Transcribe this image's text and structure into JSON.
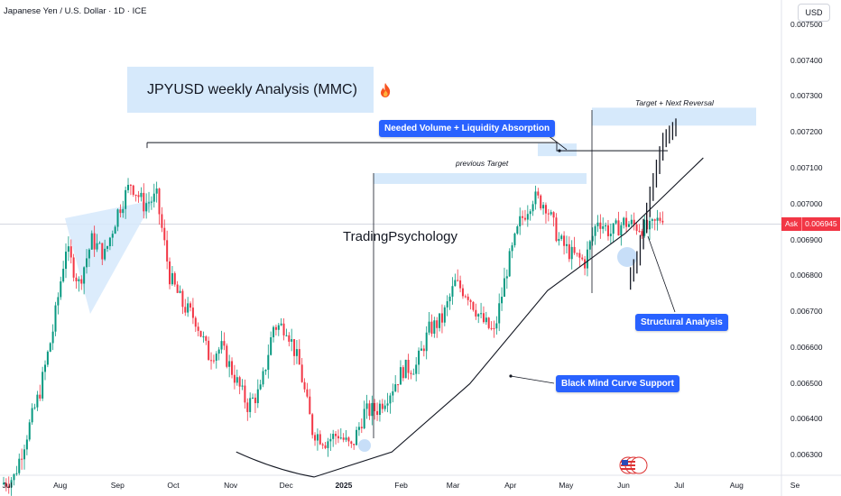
{
  "header": {
    "symbol_title": "Japanese Yen / U.S. Dollar · 1D · ICE",
    "currency_button": "USD"
  },
  "price_axis": {
    "labels": [
      "0.007500",
      "0.007400",
      "0.007300",
      "0.007200",
      "0.007100",
      "0.007000",
      "0.006900",
      "0.006800",
      "0.006700",
      "0.006600",
      "0.006500",
      "0.006400",
      "0.006300"
    ],
    "ask_label": "Ask",
    "ask_value": "0.006945",
    "up_color": "#089981",
    "down_color": "#f23645"
  },
  "time_axis": {
    "labels": [
      {
        "text": "Jul",
        "bold": false
      },
      {
        "text": "Aug",
        "bold": false
      },
      {
        "text": "Sep",
        "bold": false
      },
      {
        "text": "Oct",
        "bold": false
      },
      {
        "text": "Nov",
        "bold": false
      },
      {
        "text": "Dec",
        "bold": false
      },
      {
        "text": "2025",
        "bold": true
      },
      {
        "text": "Feb",
        "bold": false
      },
      {
        "text": "Mar",
        "bold": false
      },
      {
        "text": "Apr",
        "bold": false
      },
      {
        "text": "May",
        "bold": false
      },
      {
        "text": "Jun",
        "bold": false
      },
      {
        "text": "Jul",
        "bold": false
      },
      {
        "text": "Aug",
        "bold": false
      },
      {
        "text": "Se",
        "bold": false
      }
    ]
  },
  "annotations": {
    "title": "JPYUSD weekly Analysis (MMC)",
    "volume_callout": "Needed Volume + Liquidity Absorption",
    "previous_target": "previous Target",
    "target_reversal": "Target + Next Reversal",
    "watermark": "TradingPsychology",
    "structural": "Structural Analysis",
    "curve_support": "Black Mind Curve Support",
    "accent_color": "#2962ff",
    "zone_color": "#d6e9fb"
  },
  "chart_data": {
    "type": "candlestick",
    "title": "Japanese Yen / U.S. Dollar · 1D · ICE",
    "ylim": [
      0.00625,
      0.00752
    ],
    "ylabel": "USD",
    "ask": 0.006945,
    "closes": [
      {
        "date": "2024-07-01",
        "value": 0.00622
      },
      {
        "date": "2024-07-08",
        "value": 0.00624
      },
      {
        "date": "2024-07-15",
        "value": 0.00636
      },
      {
        "date": "2024-07-22",
        "value": 0.00648
      },
      {
        "date": "2024-07-29",
        "value": 0.00665
      },
      {
        "date": "2024-08-05",
        "value": 0.00688
      },
      {
        "date": "2024-08-12",
        "value": 0.00678
      },
      {
        "date": "2024-08-19",
        "value": 0.0069
      },
      {
        "date": "2024-08-26",
        "value": 0.00686
      },
      {
        "date": "2024-09-02",
        "value": 0.00698
      },
      {
        "date": "2024-09-09",
        "value": 0.00706
      },
      {
        "date": "2024-09-16",
        "value": 0.007
      },
      {
        "date": "2024-09-23",
        "value": 0.00702
      },
      {
        "date": "2024-09-30",
        "value": 0.0068
      },
      {
        "date": "2024-10-07",
        "value": 0.00672
      },
      {
        "date": "2024-10-14",
        "value": 0.00668
      },
      {
        "date": "2024-10-21",
        "value": 0.00658
      },
      {
        "date": "2024-10-28",
        "value": 0.0066
      },
      {
        "date": "2024-11-04",
        "value": 0.00652
      },
      {
        "date": "2024-11-11",
        "value": 0.00644
      },
      {
        "date": "2024-11-18",
        "value": 0.00648
      },
      {
        "date": "2024-11-25",
        "value": 0.00666
      },
      {
        "date": "2024-12-02",
        "value": 0.00666
      },
      {
        "date": "2024-12-09",
        "value": 0.00655
      },
      {
        "date": "2024-12-16",
        "value": 0.00637
      },
      {
        "date": "2024-12-23",
        "value": 0.00634
      },
      {
        "date": "2024-12-30",
        "value": 0.00636
      },
      {
        "date": "2025-01-06",
        "value": 0.00632
      },
      {
        "date": "2025-01-13",
        "value": 0.00642
      },
      {
        "date": "2025-01-20",
        "value": 0.00643
      },
      {
        "date": "2025-01-27",
        "value": 0.00648
      },
      {
        "date": "2025-02-03",
        "value": 0.00654
      },
      {
        "date": "2025-02-10",
        "value": 0.00655
      },
      {
        "date": "2025-02-17",
        "value": 0.00665
      },
      {
        "date": "2025-02-24",
        "value": 0.00668
      },
      {
        "date": "2025-03-03",
        "value": 0.00678
      },
      {
        "date": "2025-03-10",
        "value": 0.00675
      },
      {
        "date": "2025-03-17",
        "value": 0.00668
      },
      {
        "date": "2025-03-24",
        "value": 0.00664
      },
      {
        "date": "2025-03-31",
        "value": 0.00682
      },
      {
        "date": "2025-04-07",
        "value": 0.00695
      },
      {
        "date": "2025-04-14",
        "value": 0.00702
      },
      {
        "date": "2025-04-21",
        "value": 0.007
      },
      {
        "date": "2025-04-28",
        "value": 0.0069
      },
      {
        "date": "2025-05-05",
        "value": 0.00686
      },
      {
        "date": "2025-05-12",
        "value": 0.00684
      },
      {
        "date": "2025-05-19",
        "value": 0.00696
      },
      {
        "date": "2025-05-26",
        "value": 0.00692
      },
      {
        "date": "2025-06-02",
        "value": 0.00695
      },
      {
        "date": "2025-06-09",
        "value": 0.00694
      },
      {
        "date": "2025-06-16",
        "value": 0.00693
      },
      {
        "date": "2025-06-23",
        "value": 0.00697
      }
    ],
    "projection": [
      {
        "date": "2025-06-02",
        "value": 0.00676
      },
      {
        "date": "2025-06-09",
        "value": 0.00685
      },
      {
        "date": "2025-06-16",
        "value": 0.00703
      },
      {
        "date": "2025-06-23",
        "value": 0.00718
      },
      {
        "date": "2025-06-30",
        "value": 0.00722
      }
    ],
    "levels": {
      "needed_volume_liquidity": 0.00715,
      "previous_target_zone": [
        0.00705,
        0.00708
      ],
      "target_next_reversal_zone": [
        0.00722,
        0.00727
      ]
    },
    "curve_support": [
      {
        "date": "2024-11-04",
        "value": 0.00631
      },
      {
        "date": "2024-12-16",
        "value": 0.00624
      },
      {
        "date": "2025-01-27",
        "value": 0.00631
      },
      {
        "date": "2025-03-10",
        "value": 0.0065
      },
      {
        "date": "2025-04-21",
        "value": 0.00676
      },
      {
        "date": "2025-06-02",
        "value": 0.00692
      },
      {
        "date": "2025-07-14",
        "value": 0.00713
      }
    ],
    "grid": false,
    "legend": "none"
  }
}
